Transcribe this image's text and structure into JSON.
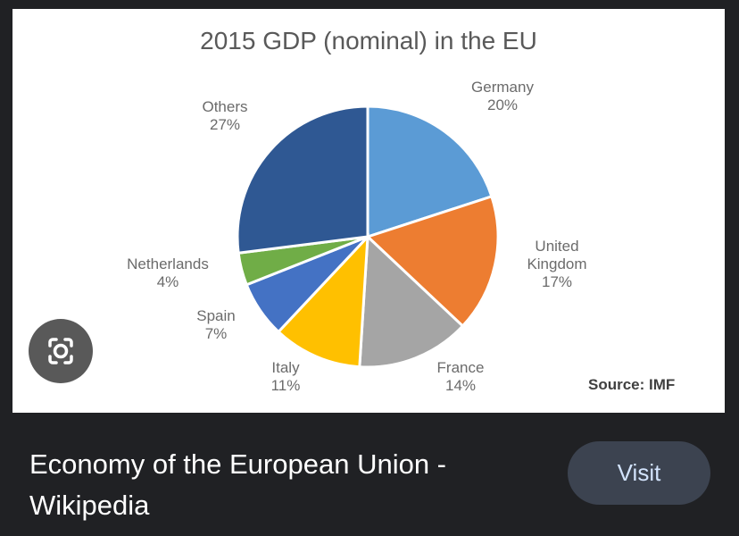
{
  "chart_data": {
    "type": "pie",
    "title": "2015 GDP (nominal) in the EU",
    "categories": [
      "Germany",
      "United Kingdom",
      "France",
      "Italy",
      "Spain",
      "Netherlands",
      "Others"
    ],
    "values": [
      20,
      17,
      14,
      11,
      7,
      4,
      27
    ],
    "value_labels": [
      "20%",
      "17%",
      "14%",
      "11%",
      "7%",
      "4%",
      "27%"
    ],
    "colors": [
      "#5b9bd5",
      "#ed7d31",
      "#a5a5a5",
      "#ffc000",
      "#4472c4",
      "#70ad47",
      "#2f5893"
    ],
    "source": "Source: IMF"
  },
  "result": {
    "title": "Economy of the European Union - Wikipedia",
    "button": "Visit"
  }
}
